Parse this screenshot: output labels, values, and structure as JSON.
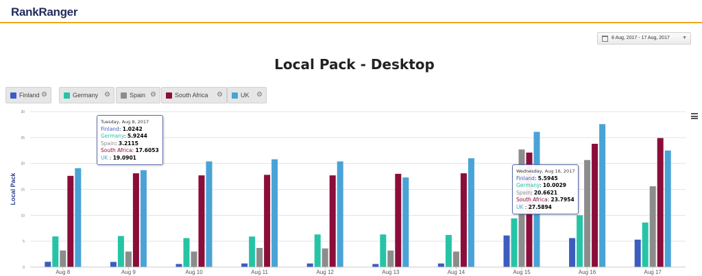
{
  "app": {
    "logo_part1": "Rank",
    "logo_part2": "Ranger"
  },
  "date_range": {
    "label": "8 Aug, 2017 - 17 Aug, 2017"
  },
  "colors": {
    "Finland": "#3c5cbf",
    "Germany": "#26c4a6",
    "Spain": "#8c8c8c",
    "South Africa": "#8b0d3a",
    "UK": "#4aa3d6",
    "accent": "#f0a818"
  },
  "legend": [
    {
      "label": "Finland"
    },
    {
      "label": "Germany"
    },
    {
      "label": "Spain"
    },
    {
      "label": "South Africa"
    },
    {
      "label": "UK"
    }
  ],
  "chart_data": {
    "type": "bar",
    "title": "Local Pack - Desktop",
    "ylabel": "Local Pack",
    "xlabel": "",
    "ylim": [
      0,
      30
    ],
    "yticks": [
      0,
      5,
      10,
      15,
      20,
      25,
      30
    ],
    "grid": true,
    "categories": [
      "Aug 8",
      "Aug 9",
      "Aug 10",
      "Aug 11",
      "Aug 12",
      "Aug 13",
      "Aug 14",
      "Aug 15",
      "Aug 16",
      "Aug 17"
    ],
    "series": [
      {
        "name": "Finland",
        "values": [
          1.0242,
          1.0,
          0.6,
          0.7,
          0.7,
          0.6,
          0.7,
          6.1,
          5.5945,
          5.3
        ]
      },
      {
        "name": "Germany",
        "values": [
          5.9244,
          6.0,
          5.6,
          5.9,
          6.3,
          6.3,
          6.2,
          9.4,
          10.0029,
          8.6
        ]
      },
      {
        "name": "Spain",
        "values": [
          3.2115,
          3.0,
          3.0,
          3.7,
          3.6,
          3.2,
          3.0,
          22.7,
          20.6621,
          15.6
        ]
      },
      {
        "name": "South Africa",
        "values": [
          17.6053,
          18.1,
          17.7,
          17.8,
          17.7,
          18.0,
          18.1,
          22.1,
          23.7954,
          24.9
        ]
      },
      {
        "name": "UK",
        "values": [
          19.0901,
          18.7,
          20.4,
          20.8,
          20.4,
          17.3,
          21.0,
          26.1,
          27.5894,
          22.5
        ]
      }
    ]
  },
  "tooltips": [
    {
      "date": "Tuesday, Aug 8, 2017",
      "rows": [
        {
          "name": "Finland",
          "value": "1.0242"
        },
        {
          "name": "Germany",
          "value": "5.9244"
        },
        {
          "name": "Spain",
          "value": "3.2115"
        },
        {
          "name": "South Africa",
          "value": "17.6053"
        },
        {
          "name": "UK ",
          "value": "19.0901"
        }
      ]
    },
    {
      "date": "Wednesday, Aug 16, 2017",
      "rows": [
        {
          "name": "Finland",
          "value": "5.5945"
        },
        {
          "name": "Germany",
          "value": "10.0029"
        },
        {
          "name": "Spain",
          "value": "20.6621"
        },
        {
          "name": "South Africa",
          "value": "23.7954"
        },
        {
          "name": "UK ",
          "value": "27.5894"
        }
      ]
    }
  ]
}
